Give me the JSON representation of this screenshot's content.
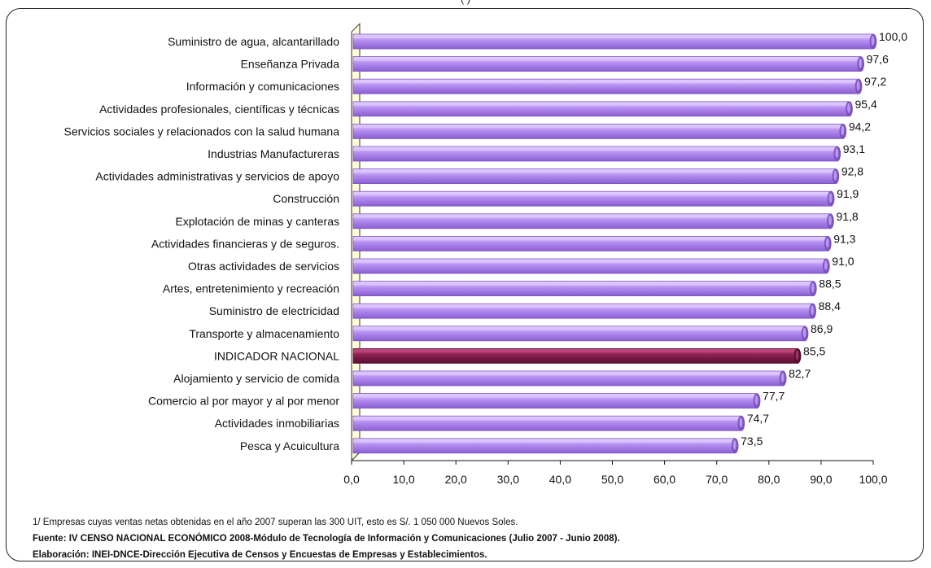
{
  "header_fragment": "(                          )",
  "chart_data": {
    "type": "bar",
    "orientation": "horizontal",
    "categories": [
      "Suministro de agua, alcantarillado",
      "Enseñanza Privada",
      "Información y comunicaciones",
      "Actividades profesionales, científicas y técnicas",
      "Servicios sociales y relacionados con la salud humana",
      "Industrias Manufactureras",
      "Actividades administrativas y servicios de apoyo",
      "Construcción",
      "Explotación de minas y canteras",
      "Actividades financieras y de seguros.",
      "Otras actividades de servicios",
      "Artes, entretenimiento y recreación",
      "Suministro de electricidad",
      "Transporte y almacenamiento",
      "INDICADOR NACIONAL",
      "Alojamiento y servicio de comida",
      "Comercio al por mayor y al por menor",
      "Actividades inmobiliarias",
      "Pesca y Acuicultura"
    ],
    "values": [
      100.0,
      97.6,
      97.2,
      95.4,
      94.2,
      93.1,
      92.8,
      91.9,
      91.8,
      91.3,
      91.0,
      88.5,
      88.4,
      86.9,
      85.5,
      82.7,
      77.7,
      74.7,
      73.5
    ],
    "value_labels": [
      "100,0",
      "97,6",
      "97,2",
      "95,4",
      "94,2",
      "93,1",
      "92,8",
      "91,9",
      "91,8",
      "91,3",
      "91,0",
      "88,5",
      "88,4",
      "86,9",
      "85,5",
      "82,7",
      "77,7",
      "74,7",
      "73,5"
    ],
    "highlight_category": "INDICADOR NACIONAL",
    "xlim": [
      0,
      100
    ],
    "xticks": [
      "0,0",
      "10,0",
      "20,0",
      "30,0",
      "40,0",
      "50,0",
      "60,0",
      "70,0",
      "80,0",
      "90,0",
      "100,0"
    ],
    "grid": false,
    "colors": {
      "bar": "#b48cf0",
      "bar_light": "#ddc8ff",
      "bar_dark": "#7d52c4",
      "highlight": "#8a1f4f",
      "highlight_light": "#c04a80",
      "highlight_dark": "#561030",
      "wall": "#fffbd6"
    }
  },
  "notes": {
    "footnote": "1/ Empresas cuyas ventas netas obtenidas en el año 2007 superan las 300 UIT, esto es S/. 1 050 000 Nuevos Soles.",
    "source": "Fuente: IV CENSO NACIONAL ECONÓMICO 2008-Módulo de Tecnología de Información y Comunicaciones (Julio 2007 - Junio 2008).",
    "elaboration": "Elaboración:  INEI-DNCE-Dirección Ejecutiva de Censos y Encuestas de Empresas y Establecimientos."
  }
}
